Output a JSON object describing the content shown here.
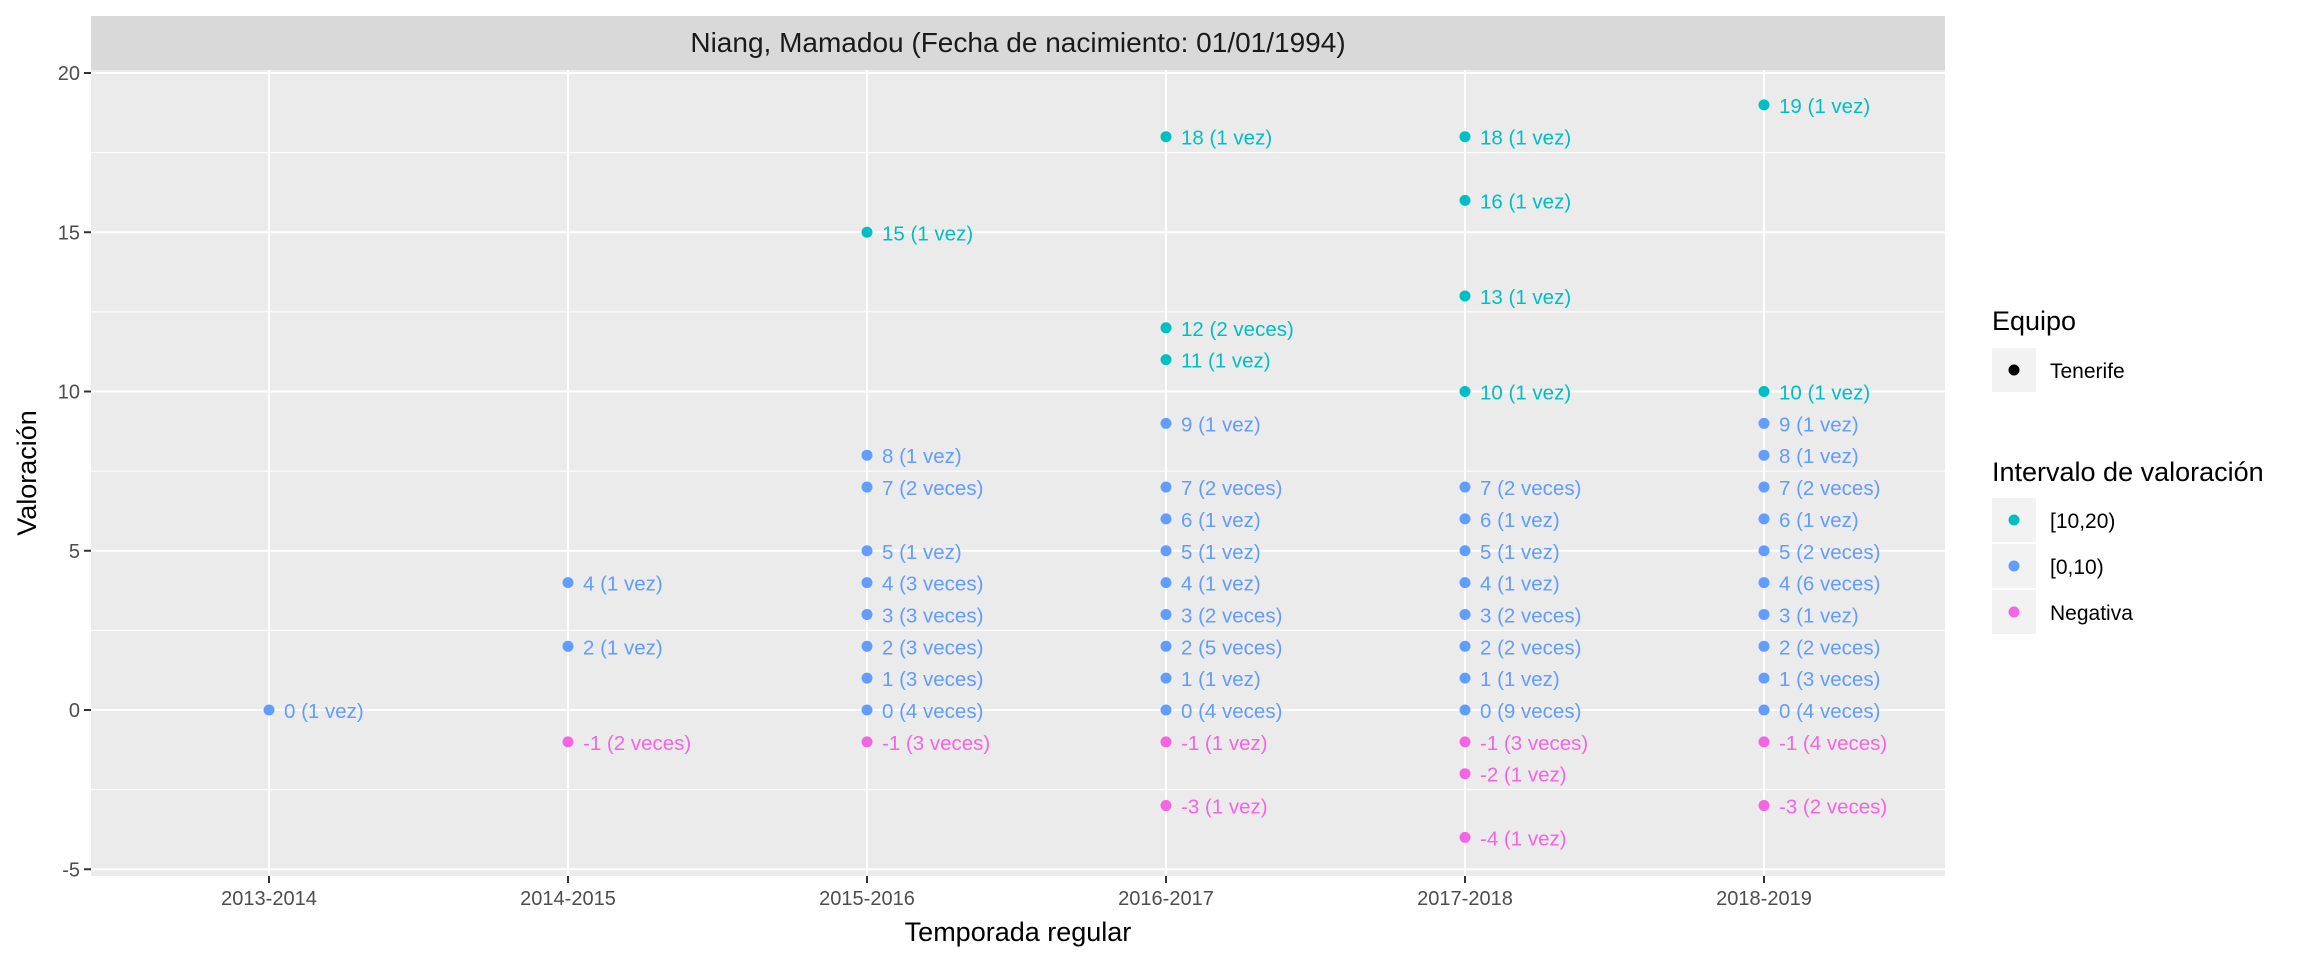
{
  "chart_data": {
    "type": "scatter",
    "title": "Niang, Mamadou (Fecha de nacimiento: 01/01/1994)",
    "xlabel": "Temporada regular",
    "ylabel": "Valoración",
    "categories": [
      "2013-2014",
      "2014-2015",
      "2015-2016",
      "2016-2017",
      "2017-2018",
      "2018-2019"
    ],
    "ylim": [
      -5,
      20
    ],
    "yticks": [
      -5,
      0,
      5,
      10,
      15,
      20
    ],
    "grid": true,
    "legend_position": "right",
    "colors": {
      "[10,20)": "#00BFC4",
      "[0,10)": "#619CFF",
      "Negativa": "#F564E3"
    },
    "legends": [
      {
        "title": "Equipo",
        "entries": [
          {
            "label": "Tenerife",
            "color": "#000000"
          }
        ]
      },
      {
        "title": "Intervalo de valoración",
        "entries": [
          {
            "label": "[10,20)",
            "color": "#00BFC4"
          },
          {
            "label": "[0,10)",
            "color": "#619CFF"
          },
          {
            "label": "Negativa",
            "color": "#F564E3"
          }
        ]
      }
    ],
    "points": [
      {
        "x": "2013-2014",
        "y": 0,
        "label": "0 (1 vez)",
        "group": "[0,10)"
      },
      {
        "x": "2014-2015",
        "y": 4,
        "label": "4 (1 vez)",
        "group": "[0,10)"
      },
      {
        "x": "2014-2015",
        "y": 2,
        "label": "2 (1 vez)",
        "group": "[0,10)"
      },
      {
        "x": "2014-2015",
        "y": -1,
        "label": "-1 (2 veces)",
        "group": "Negativa"
      },
      {
        "x": "2015-2016",
        "y": 15,
        "label": "15 (1 vez)",
        "group": "[10,20)"
      },
      {
        "x": "2015-2016",
        "y": 8,
        "label": "8 (1 vez)",
        "group": "[0,10)"
      },
      {
        "x": "2015-2016",
        "y": 7,
        "label": "7 (2 veces)",
        "group": "[0,10)"
      },
      {
        "x": "2015-2016",
        "y": 5,
        "label": "5 (1 vez)",
        "group": "[0,10)"
      },
      {
        "x": "2015-2016",
        "y": 4,
        "label": "4 (3 veces)",
        "group": "[0,10)"
      },
      {
        "x": "2015-2016",
        "y": 3,
        "label": "3 (3 veces)",
        "group": "[0,10)"
      },
      {
        "x": "2015-2016",
        "y": 2,
        "label": "2 (3 veces)",
        "group": "[0,10)"
      },
      {
        "x": "2015-2016",
        "y": 1,
        "label": "1 (3 veces)",
        "group": "[0,10)"
      },
      {
        "x": "2015-2016",
        "y": 0,
        "label": "0 (4 veces)",
        "group": "[0,10)"
      },
      {
        "x": "2015-2016",
        "y": -1,
        "label": "-1 (3 veces)",
        "group": "Negativa"
      },
      {
        "x": "2016-2017",
        "y": 18,
        "label": "18 (1 vez)",
        "group": "[10,20)"
      },
      {
        "x": "2016-2017",
        "y": 12,
        "label": "12 (2 veces)",
        "group": "[10,20)"
      },
      {
        "x": "2016-2017",
        "y": 11,
        "label": "11 (1 vez)",
        "group": "[10,20)"
      },
      {
        "x": "2016-2017",
        "y": 9,
        "label": "9 (1 vez)",
        "group": "[0,10)"
      },
      {
        "x": "2016-2017",
        "y": 7,
        "label": "7 (2 veces)",
        "group": "[0,10)"
      },
      {
        "x": "2016-2017",
        "y": 6,
        "label": "6 (1 vez)",
        "group": "[0,10)"
      },
      {
        "x": "2016-2017",
        "y": 5,
        "label": "5 (1 vez)",
        "group": "[0,10)"
      },
      {
        "x": "2016-2017",
        "y": 4,
        "label": "4 (1 vez)",
        "group": "[0,10)"
      },
      {
        "x": "2016-2017",
        "y": 3,
        "label": "3 (2 veces)",
        "group": "[0,10)"
      },
      {
        "x": "2016-2017",
        "y": 2,
        "label": "2 (5 veces)",
        "group": "[0,10)"
      },
      {
        "x": "2016-2017",
        "y": 1,
        "label": "1 (1 vez)",
        "group": "[0,10)"
      },
      {
        "x": "2016-2017",
        "y": 0,
        "label": "0 (4 veces)",
        "group": "[0,10)"
      },
      {
        "x": "2016-2017",
        "y": -1,
        "label": "-1 (1 vez)",
        "group": "Negativa"
      },
      {
        "x": "2016-2017",
        "y": -3,
        "label": "-3 (1 vez)",
        "group": "Negativa"
      },
      {
        "x": "2017-2018",
        "y": 18,
        "label": "18 (1 vez)",
        "group": "[10,20)"
      },
      {
        "x": "2017-2018",
        "y": 16,
        "label": "16 (1 vez)",
        "group": "[10,20)"
      },
      {
        "x": "2017-2018",
        "y": 13,
        "label": "13 (1 vez)",
        "group": "[10,20)"
      },
      {
        "x": "2017-2018",
        "y": 10,
        "label": "10 (1 vez)",
        "group": "[10,20)"
      },
      {
        "x": "2017-2018",
        "y": 7,
        "label": "7 (2 veces)",
        "group": "[0,10)"
      },
      {
        "x": "2017-2018",
        "y": 6,
        "label": "6 (1 vez)",
        "group": "[0,10)"
      },
      {
        "x": "2017-2018",
        "y": 5,
        "label": "5 (1 vez)",
        "group": "[0,10)"
      },
      {
        "x": "2017-2018",
        "y": 4,
        "label": "4 (1 vez)",
        "group": "[0,10)"
      },
      {
        "x": "2017-2018",
        "y": 3,
        "label": "3 (2 veces)",
        "group": "[0,10)"
      },
      {
        "x": "2017-2018",
        "y": 2,
        "label": "2 (2 veces)",
        "group": "[0,10)"
      },
      {
        "x": "2017-2018",
        "y": 1,
        "label": "1 (1 vez)",
        "group": "[0,10)"
      },
      {
        "x": "2017-2018",
        "y": 0,
        "label": "0 (9 veces)",
        "group": "[0,10)"
      },
      {
        "x": "2017-2018",
        "y": -1,
        "label": "-1 (3 veces)",
        "group": "Negativa"
      },
      {
        "x": "2017-2018",
        "y": -2,
        "label": "-2 (1 vez)",
        "group": "Negativa"
      },
      {
        "x": "2017-2018",
        "y": -4,
        "label": "-4 (1 vez)",
        "group": "Negativa"
      },
      {
        "x": "2018-2019",
        "y": 19,
        "label": "19 (1 vez)",
        "group": "[10,20)"
      },
      {
        "x": "2018-2019",
        "y": 10,
        "label": "10 (1 vez)",
        "group": "[10,20)"
      },
      {
        "x": "2018-2019",
        "y": 9,
        "label": "9 (1 vez)",
        "group": "[0,10)"
      },
      {
        "x": "2018-2019",
        "y": 8,
        "label": "8 (1 vez)",
        "group": "[0,10)"
      },
      {
        "x": "2018-2019",
        "y": 7,
        "label": "7 (2 veces)",
        "group": "[0,10)"
      },
      {
        "x": "2018-2019",
        "y": 6,
        "label": "6 (1 vez)",
        "group": "[0,10)"
      },
      {
        "x": "2018-2019",
        "y": 5,
        "label": "5 (2 veces)",
        "group": "[0,10)"
      },
      {
        "x": "2018-2019",
        "y": 4,
        "label": "4 (6 veces)",
        "group": "[0,10)"
      },
      {
        "x": "2018-2019",
        "y": 3,
        "label": "3 (1 vez)",
        "group": "[0,10)"
      },
      {
        "x": "2018-2019",
        "y": 2,
        "label": "2 (2 veces)",
        "group": "[0,10)"
      },
      {
        "x": "2018-2019",
        "y": 1,
        "label": "1 (3 veces)",
        "group": "[0,10)"
      },
      {
        "x": "2018-2019",
        "y": 0,
        "label": "0 (4 veces)",
        "group": "[0,10)"
      },
      {
        "x": "2018-2019",
        "y": -1,
        "label": "-1 (4 veces)",
        "group": "Negativa"
      },
      {
        "x": "2018-2019",
        "y": -3,
        "label": "-3 (2 veces)",
        "group": "Negativa"
      }
    ]
  }
}
